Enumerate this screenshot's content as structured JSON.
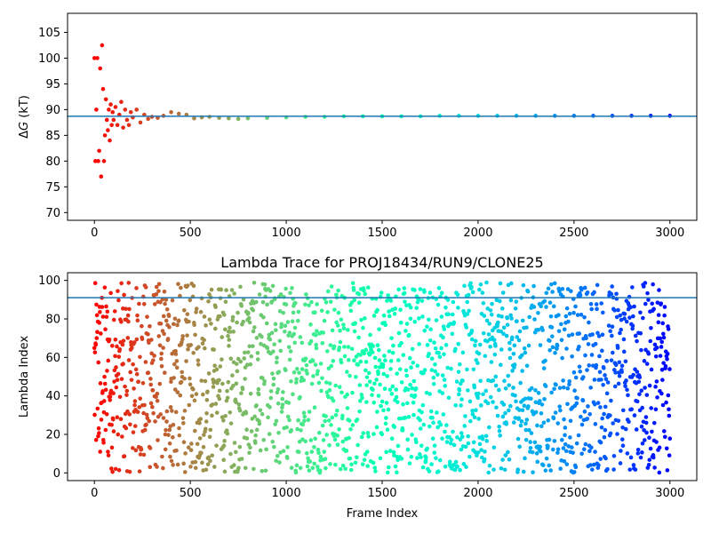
{
  "chart_data": [
    {
      "type": "scatter",
      "title": "",
      "ylabel_symbol": "Δ",
      "ylabel_var": "G",
      "ylabel_unit": " (kT)",
      "xlabel": "",
      "xlim": [
        -140,
        3140
      ],
      "ylim": [
        68.5,
        108.7
      ],
      "xticks": [
        0,
        500,
        1000,
        1500,
        2000,
        2500,
        3000
      ],
      "yticks": [
        70,
        75,
        80,
        85,
        90,
        95,
        100,
        105
      ],
      "hline": {
        "y": 88.7,
        "color": "#1f77b4"
      },
      "colormap": "rainbow (red at start, purple at end)",
      "grid": false,
      "series": [
        {
          "x": [
            0,
            5,
            10,
            15,
            20,
            25,
            30,
            35,
            40,
            45,
            50,
            55,
            60,
            65,
            70,
            75,
            80,
            85,
            90,
            95,
            100,
            110,
            120,
            130,
            140,
            150,
            160,
            170,
            180,
            190,
            200,
            220,
            240,
            260,
            280,
            300,
            330,
            360,
            400,
            440,
            480,
            520,
            560,
            600,
            650,
            700,
            750,
            800,
            900,
            1000,
            1100,
            1200,
            1300,
            1400,
            1500,
            1600,
            1700,
            1800,
            1900,
            2000,
            2100,
            2200,
            2300,
            2400,
            2500,
            2600,
            2700,
            2800,
            2900,
            3000
          ],
          "y": [
            100,
            80,
            90,
            100,
            80,
            82,
            98,
            77,
            102.5,
            94,
            80,
            85,
            92,
            88,
            86,
            90,
            84,
            91,
            87,
            89.5,
            88,
            90.5,
            87,
            89,
            91.5,
            86.5,
            90,
            88,
            87,
            89.5,
            88.5,
            90,
            87.5,
            89,
            88.2,
            88.6,
            88.4,
            88.8,
            89.5,
            89.2,
            89,
            88.3,
            88.5,
            88.6,
            88.4,
            88.3,
            88.2,
            88.3,
            88.4,
            88.5,
            88.6,
            88.6,
            88.7,
            88.7,
            88.7,
            88.7,
            88.7,
            88.8,
            88.8,
            88.8,
            88.8,
            88.8,
            88.8,
            88.8,
            88.8,
            88.8,
            88.8,
            88.8,
            88.8,
            88.8
          ]
        }
      ]
    },
    {
      "type": "scatter",
      "title": "Lambda Trace for PROJ18434/RUN9/CLONE25",
      "xlabel": "Frame Index",
      "ylabel": "Lambda Index",
      "xlim": [
        -140,
        3140
      ],
      "ylim": [
        -4,
        104
      ],
      "xticks": [
        0,
        500,
        1000,
        1500,
        2000,
        2500,
        3000
      ],
      "yticks": [
        0,
        20,
        40,
        60,
        80,
        100
      ],
      "hline": {
        "y": 91,
        "color": "#1f77b4"
      },
      "colormap": "rainbow (red at start, purple at end)",
      "grid": false,
      "point_count": 2000,
      "x_range": [
        0,
        3000
      ],
      "y_range": [
        0,
        99
      ],
      "distribution": "points scattered roughly uniformly over x 0–3000 and lambda index 0–99"
    }
  ]
}
